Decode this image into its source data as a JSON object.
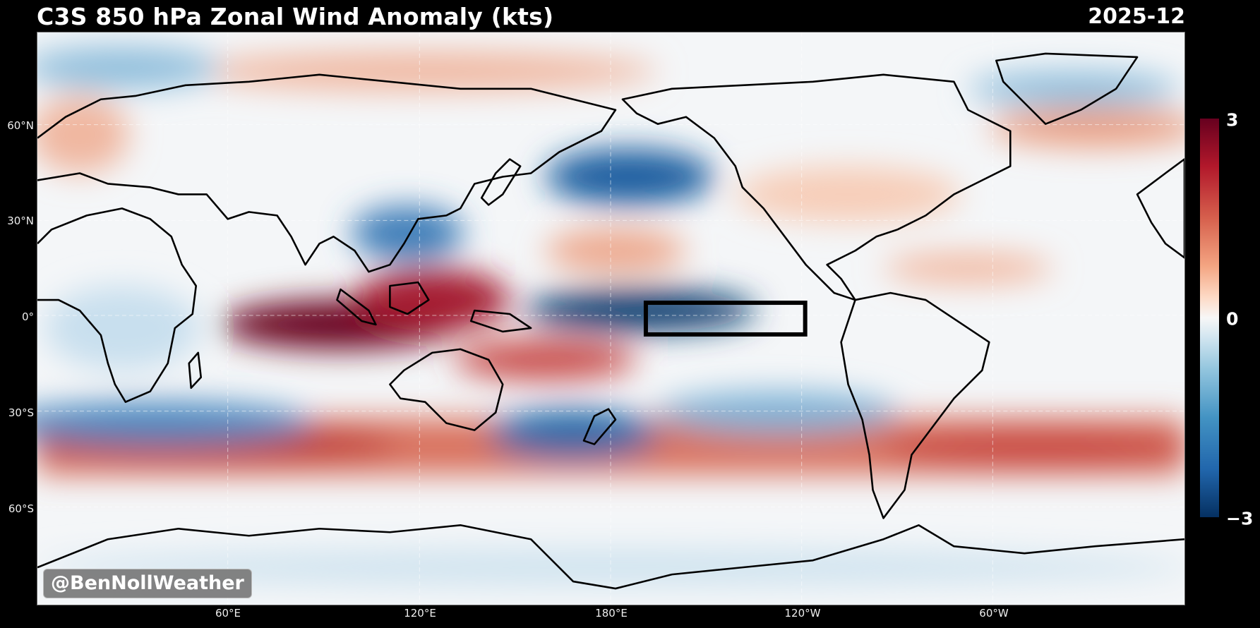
{
  "header": {
    "title": "C3S 850 hPa Zonal Wind Anomaly (kts)",
    "date": "2025-12"
  },
  "axes": {
    "lat_labels": [
      "60°N",
      "30°N",
      "0°",
      "30°S",
      "60°S"
    ],
    "lon_labels": [
      "60°E",
      "120°E",
      "180°E",
      "120°W",
      "60°W"
    ]
  },
  "colorbar": {
    "max_label": "3",
    "mid_label": "0",
    "min_label": "−3",
    "colors": {
      "max": "#67001f",
      "mid": "#f7f7f7",
      "min": "#053061"
    }
  },
  "watermark": "@BenNollWeather",
  "colors": {
    "background": "#000000",
    "land_outline": "#000000",
    "box_outline": "#000000"
  }
}
